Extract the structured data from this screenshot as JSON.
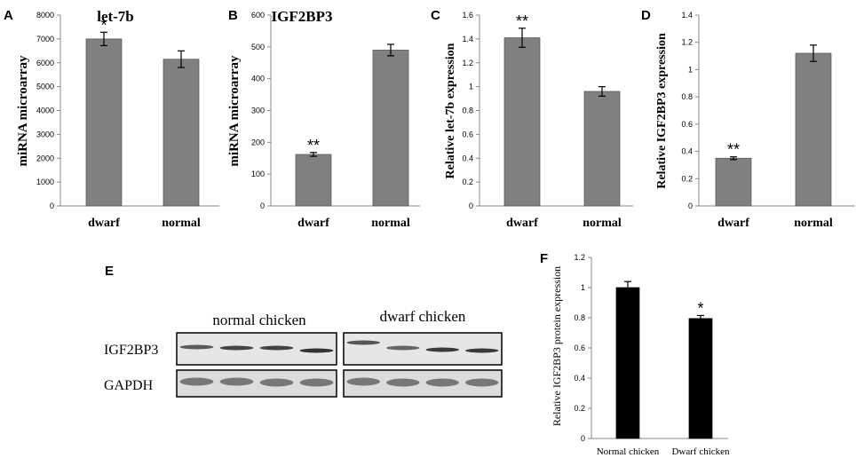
{
  "panels": [
    {
      "letter": "A"
    },
    {
      "letter": "B"
    },
    {
      "letter": "C"
    },
    {
      "letter": "D"
    },
    {
      "letter": "E"
    },
    {
      "letter": "F"
    }
  ],
  "blot": {
    "group_labels": [
      "normal chicken",
      "dwarf chicken"
    ],
    "row_labels": [
      "IGF2BP3",
      "GAPDH"
    ],
    "lanes_per_group": 4
  },
  "chart_data": [
    {
      "panel": "A",
      "type": "bar",
      "title": "let-7b",
      "ylabel": "miRNA microarray",
      "xlabel": "",
      "categories": [
        "dwarf",
        "normal"
      ],
      "values": [
        7000,
        6150
      ],
      "errors": [
        280,
        350
      ],
      "annotations": [
        "*",
        ""
      ],
      "ylim": [
        0,
        8000
      ],
      "yticks": [
        0,
        1000,
        2000,
        3000,
        4000,
        5000,
        6000,
        7000,
        8000
      ],
      "ytick_labels": [
        "0",
        "1000",
        "2000",
        "3000",
        "4000",
        "5000",
        "6000",
        "7000",
        "8000"
      ],
      "grid": false,
      "bar_color": "#808080"
    },
    {
      "panel": "B",
      "type": "bar",
      "title": "IGF2BP3",
      "ylabel": "miRNA microarray",
      "xlabel": "",
      "categories": [
        "dwarf",
        "normal"
      ],
      "values": [
        162,
        490
      ],
      "errors": [
        6,
        18
      ],
      "annotations": [
        "**",
        ""
      ],
      "ylim": [
        0,
        600
      ],
      "yticks": [
        0,
        100,
        200,
        300,
        400,
        500,
        600
      ],
      "ytick_labels": [
        "0",
        "100",
        "200",
        "300",
        "400",
        "500",
        "600"
      ],
      "grid": false,
      "bar_color": "#808080"
    },
    {
      "panel": "C",
      "type": "bar",
      "title": "",
      "ylabel": "Relative let-7b expression",
      "xlabel": "",
      "categories": [
        "dwarf",
        "normal"
      ],
      "values": [
        1.41,
        0.96
      ],
      "errors": [
        0.08,
        0.04
      ],
      "annotations": [
        "**",
        ""
      ],
      "ylim": [
        0,
        1.6
      ],
      "yticks": [
        0,
        0.2,
        0.4,
        0.6,
        0.8,
        1.0,
        1.2,
        1.4,
        1.6
      ],
      "ytick_labels": [
        "0",
        "0.2",
        "0.4",
        "0.6",
        "0.8",
        "1",
        "1.2",
        "1.4",
        "1.6"
      ],
      "grid": false,
      "bar_color": "#808080"
    },
    {
      "panel": "D",
      "type": "bar",
      "title": "",
      "ylabel": "Relative IGF2BP3 expression",
      "xlabel": "",
      "categories": [
        "dwarf",
        "normal"
      ],
      "values": [
        0.35,
        1.12
      ],
      "errors": [
        0.01,
        0.06
      ],
      "annotations": [
        "**",
        ""
      ],
      "ylim": [
        0,
        1.4
      ],
      "yticks": [
        0,
        0.2,
        0.4,
        0.6,
        0.8,
        1.0,
        1.2,
        1.4
      ],
      "ytick_labels": [
        "0",
        "0.2",
        "0.4",
        "0.6",
        "0.8",
        "1",
        "1.2",
        "1.4"
      ],
      "grid": false,
      "bar_color": "#808080"
    },
    {
      "panel": "F",
      "type": "bar",
      "title": "",
      "ylabel": "Relative IGF2BP3 protein expression",
      "xlabel": "",
      "categories": [
        "Normal chicken",
        "Dwarf chicken"
      ],
      "values": [
        1.0,
        0.795
      ],
      "errors": [
        0.04,
        0.02
      ],
      "annotations": [
        "",
        "*"
      ],
      "ylim": [
        0,
        1.2
      ],
      "yticks": [
        0,
        0.2,
        0.4,
        0.6,
        0.8,
        1.0,
        1.2
      ],
      "ytick_labels": [
        "0",
        "0.2",
        "0.4",
        "0.6",
        "0.8",
        "1",
        "1.2"
      ],
      "grid": false,
      "bar_color": "#000000"
    }
  ]
}
